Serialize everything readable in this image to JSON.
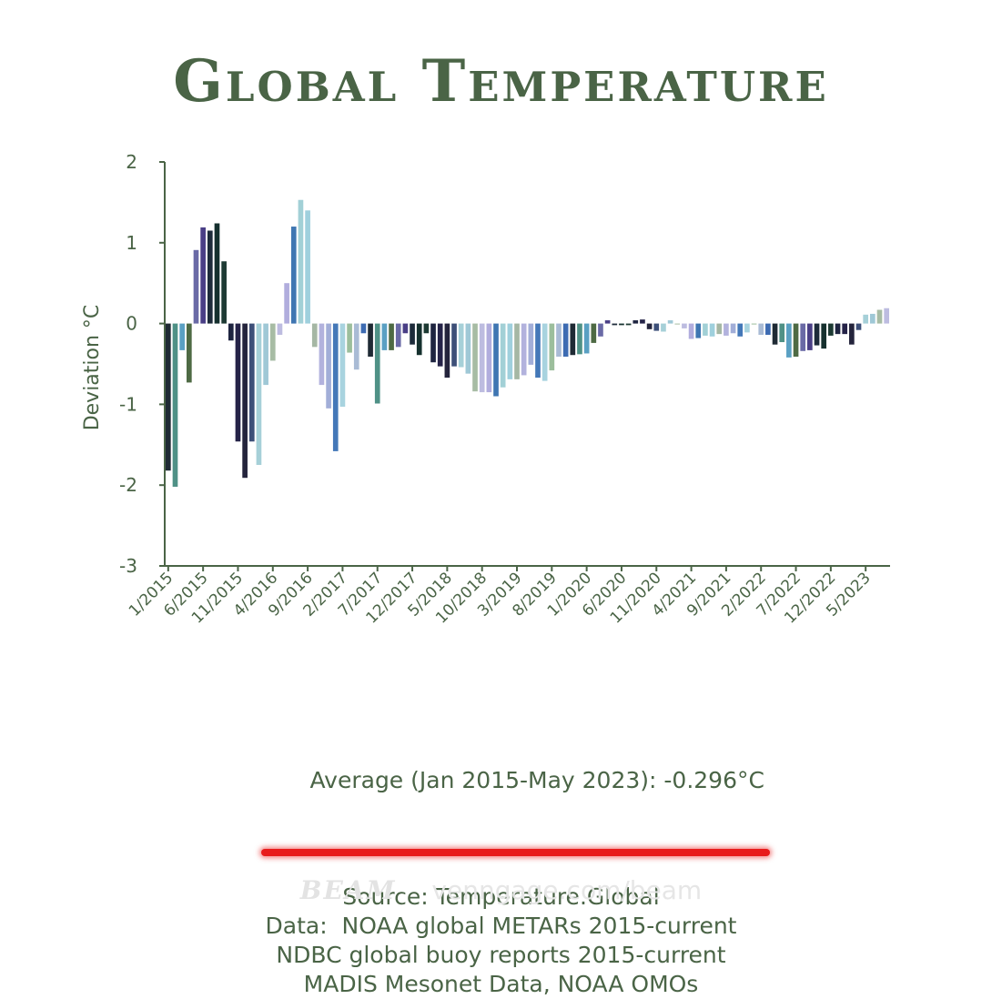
{
  "chart_data": {
    "type": "bar",
    "title": "Global Temperature",
    "ylabel": "Deviation °C",
    "xlabel": "",
    "ylim": [
      -3,
      2
    ],
    "yticks": [
      2,
      1,
      0,
      -1,
      -2,
      -3
    ],
    "xticklabels": [
      "1/2015",
      "6/2015",
      "11/2015",
      "4/2016",
      "9/2016",
      "2/2017",
      "7/2017",
      "12/2017",
      "5/2018",
      "10/2018",
      "3/2019",
      "8/2019",
      "1/2020",
      "6/2020",
      "11/2020",
      "4/2021",
      "9/2021",
      "2/2022",
      "7/2022",
      "12/2022",
      "5/2023"
    ],
    "x_start": "1/2015",
    "x_end": "5/2023",
    "values": [
      -1.82,
      -2.02,
      -0.33,
      -0.73,
      0.91,
      1.19,
      1.15,
      1.24,
      0.77,
      -0.21,
      -1.46,
      -1.91,
      -1.46,
      -1.75,
      -0.76,
      -0.46,
      -0.14,
      0.5,
      1.2,
      1.53,
      1.4,
      -0.29,
      -0.76,
      -1.05,
      -1.58,
      -1.03,
      -0.36,
      -0.57,
      -0.12,
      -0.41,
      -0.99,
      -0.33,
      -0.33,
      -0.29,
      -0.12,
      -0.26,
      -0.39,
      -0.12,
      -0.48,
      -0.53,
      -0.67,
      -0.53,
      -0.54,
      -0.62,
      -0.84,
      -0.85,
      -0.85,
      -0.9,
      -0.79,
      -0.69,
      -0.69,
      -0.64,
      -0.51,
      -0.67,
      -0.71,
      -0.58,
      -0.41,
      -0.41,
      -0.39,
      -0.38,
      -0.37,
      -0.24,
      -0.16,
      0.04,
      -0.02,
      -0.02,
      -0.02,
      0.04,
      0.05,
      -0.07,
      -0.09,
      -0.1,
      0.04,
      0.0,
      -0.06,
      -0.19,
      -0.18,
      -0.15,
      -0.16,
      -0.13,
      -0.15,
      -0.12,
      -0.16,
      -0.11,
      -0.01,
      -0.14,
      -0.14,
      -0.26,
      -0.23,
      -0.42,
      -0.41,
      -0.34,
      -0.33,
      -0.27,
      -0.31,
      -0.15,
      -0.13,
      -0.13,
      -0.26,
      -0.08,
      0.11,
      0.12,
      0.17,
      0.19
    ],
    "palette": [
      "#1f2a34",
      "#4f9186",
      "#5aa0c3",
      "#4e6a44",
      "#6a6aa6",
      "#4a3f86",
      "#1d2b3a",
      "#15302e",
      "#1d3a33",
      "#1e2440",
      "#252348",
      "#24243c",
      "#3d4f78",
      "#a6d0d8",
      "#9fc8d6",
      "#a7bca4",
      "#bdbce0",
      "#b1addd",
      "#3f76b2",
      "#a2d0d6",
      "#9fd0dd",
      "#a5b7a4",
      "#b2b2dd",
      "#a2aed8",
      "#4478b8",
      "#a8d3df",
      "#9cbe9c",
      "#a9bbd5",
      "#3d6bb2"
    ],
    "average_text": "Average (Jan 2015-May 2023): -0.296°C",
    "source_text": "Source: Temperature.Global",
    "data_line1": "Data:  NOAA global METARs 2015-current",
    "data_line2": "NDBC global buoy reports 2015-current",
    "data_line3": "MADIS Mesonet Data, NOAA OMOs"
  },
  "colors": {
    "text": "#4a6446",
    "axis": "#4a6446",
    "highlight": "#e81c1c"
  },
  "watermark": {
    "brand": "BEAM",
    "url": "venngage.com/beam"
  }
}
